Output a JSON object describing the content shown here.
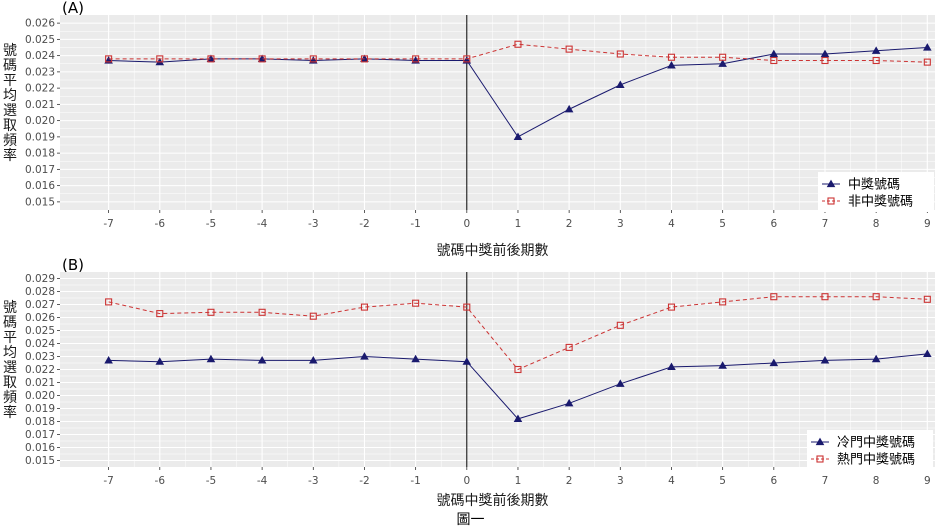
{
  "caption": "圖一",
  "colors": {
    "primary": "#1a1a6e",
    "secondary": "#cc3333",
    "panel_bg": "#ebebeb",
    "grid": "#ffffff"
  },
  "chart_data": [
    {
      "type": "line",
      "panel_label": "(A)",
      "xlabel": "號碼中獎前後期數",
      "ylabel": "號碼平均選取頻率",
      "x": [
        -7,
        -6,
        -5,
        -4,
        -3,
        -2,
        -1,
        0,
        1,
        2,
        3,
        4,
        5,
        6,
        7,
        8,
        9
      ],
      "xlim": [
        -7.95,
        9.15
      ],
      "ylim": [
        0.0145,
        0.0265
      ],
      "yticks": [
        0.015,
        0.016,
        0.017,
        0.018,
        0.019,
        0.02,
        0.021,
        0.022,
        0.023,
        0.024,
        0.025,
        0.026
      ],
      "vline": 0,
      "grid": true,
      "legend": "bottom-right",
      "series": [
        {
          "name": "中獎號碼",
          "marker": "triangle",
          "linestyle": "solid",
          "color": "#1a1a6e",
          "values": [
            0.0237,
            0.0236,
            0.0238,
            0.0238,
            0.0237,
            0.0238,
            0.0237,
            0.0237,
            0.019,
            0.0207,
            0.0222,
            0.0234,
            0.0235,
            0.0241,
            0.0241,
            0.0243,
            0.0245
          ]
        },
        {
          "name": "非中獎號碼",
          "marker": "square-open",
          "linestyle": "dashed",
          "color": "#cc3333",
          "values": [
            0.0238,
            0.0238,
            0.0238,
            0.0238,
            0.0238,
            0.0238,
            0.0238,
            0.0238,
            0.0247,
            0.0244,
            0.0241,
            0.0239,
            0.0239,
            0.0237,
            0.0237,
            0.0237,
            0.0236
          ]
        }
      ]
    },
    {
      "type": "line",
      "panel_label": "(B)",
      "xlabel": "號碼中獎前後期數",
      "ylabel": "號碼平均選取頻率",
      "x": [
        -7,
        -6,
        -5,
        -4,
        -3,
        -2,
        -1,
        0,
        1,
        2,
        3,
        4,
        5,
        6,
        7,
        8,
        9
      ],
      "xlim": [
        -7.95,
        9.15
      ],
      "ylim": [
        0.0145,
        0.0295
      ],
      "yticks": [
        0.015,
        0.016,
        0.017,
        0.018,
        0.019,
        0.02,
        0.021,
        0.022,
        0.023,
        0.024,
        0.025,
        0.026,
        0.027,
        0.028,
        0.029
      ],
      "vline": 0,
      "grid": true,
      "legend": "bottom-right",
      "series": [
        {
          "name": "冷門中獎號碼",
          "marker": "triangle",
          "linestyle": "solid",
          "color": "#1a1a6e",
          "values": [
            0.0227,
            0.0226,
            0.0228,
            0.0227,
            0.0227,
            0.023,
            0.0228,
            0.0226,
            0.0182,
            0.0194,
            0.0209,
            0.0222,
            0.0223,
            0.0225,
            0.0227,
            0.0228,
            0.0232
          ]
        },
        {
          "name": "熱門中獎號碼",
          "marker": "square-open",
          "linestyle": "dashed",
          "color": "#cc3333",
          "values": [
            0.0272,
            0.0263,
            0.0264,
            0.0264,
            0.0261,
            0.0268,
            0.0271,
            0.0268,
            0.022,
            0.0237,
            0.0254,
            0.0268,
            0.0272,
            0.0276,
            0.0276,
            0.0276,
            0.0274
          ]
        }
      ]
    }
  ]
}
